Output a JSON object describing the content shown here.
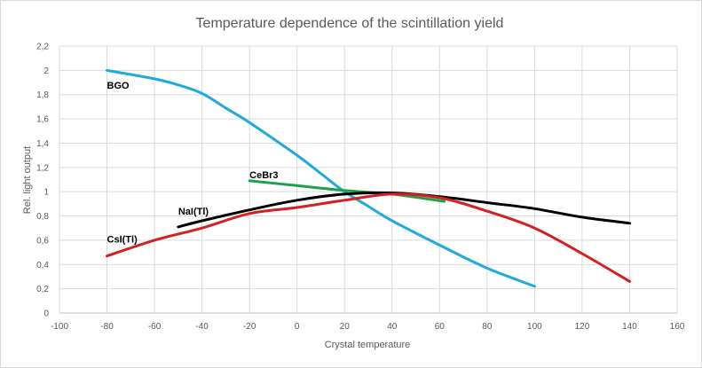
{
  "chart_data": {
    "type": "line",
    "title": "Temperature dependence of the scintillation yield",
    "xlabel": "Crystal temperature",
    "ylabel": "Rel. light output",
    "xlim": [
      -100,
      160
    ],
    "ylim": [
      0,
      2.2
    ],
    "x_ticks": [
      -100,
      -80,
      -60,
      -40,
      -20,
      0,
      20,
      40,
      60,
      80,
      100,
      120,
      140,
      160
    ],
    "x_tick_labels": [
      "-100",
      "-80",
      "-60",
      "-40",
      "-20",
      "0",
      "20",
      "40",
      "60",
      "80",
      "100",
      "120",
      "140",
      "160"
    ],
    "y_ticks": [
      0,
      0.2,
      0.4,
      0.6,
      0.8,
      1,
      1.2,
      1.4,
      1.6,
      1.8,
      2,
      2.2
    ],
    "y_tick_labels": [
      "0",
      "0,2",
      "0,4",
      "0,6",
      "0,8",
      "1",
      "1,2",
      "1,4",
      "1,6",
      "1,8",
      "2",
      "2,2"
    ],
    "grid": true,
    "legend": "inline labels",
    "series": [
      {
        "name": "BGO",
        "color": "#21a9d9",
        "label_at": [
          -80,
          1.85
        ],
        "points": [
          [
            -80,
            2.0
          ],
          [
            -60,
            1.93
          ],
          [
            -50,
            1.88
          ],
          [
            -40,
            1.81
          ],
          [
            -30,
            1.69
          ],
          [
            -20,
            1.57
          ],
          [
            0,
            1.3
          ],
          [
            10,
            1.15
          ],
          [
            20,
            1.0
          ],
          [
            30,
            0.88
          ],
          [
            40,
            0.76
          ],
          [
            60,
            0.56
          ],
          [
            80,
            0.37
          ],
          [
            100,
            0.22
          ]
        ]
      },
      {
        "name": "CeBr3",
        "color": "#1fa04a",
        "label_at": [
          -20,
          1.11
        ],
        "points": [
          [
            -20,
            1.09
          ],
          [
            0,
            1.05
          ],
          [
            20,
            1.01
          ],
          [
            40,
            0.98
          ],
          [
            62,
            0.92
          ]
        ]
      },
      {
        "name": "NaI(Tl)",
        "color": "#000000",
        "label_at": [
          -50,
          0.81
        ],
        "points": [
          [
            -50,
            0.71
          ],
          [
            -40,
            0.76
          ],
          [
            -20,
            0.85
          ],
          [
            0,
            0.93
          ],
          [
            20,
            0.98
          ],
          [
            40,
            0.99
          ],
          [
            60,
            0.96
          ],
          [
            80,
            0.91
          ],
          [
            100,
            0.86
          ],
          [
            120,
            0.79
          ],
          [
            140,
            0.74
          ]
        ]
      },
      {
        "name": "CsI(Tl)",
        "color": "#d42020",
        "label_at": [
          -80,
          0.58
        ],
        "points": [
          [
            -80,
            0.47
          ],
          [
            -60,
            0.6
          ],
          [
            -40,
            0.7
          ],
          [
            -20,
            0.82
          ],
          [
            0,
            0.87
          ],
          [
            20,
            0.93
          ],
          [
            40,
            0.98
          ],
          [
            60,
            0.95
          ],
          [
            80,
            0.84
          ],
          [
            100,
            0.7
          ],
          [
            120,
            0.49
          ],
          [
            140,
            0.26
          ]
        ]
      }
    ]
  }
}
